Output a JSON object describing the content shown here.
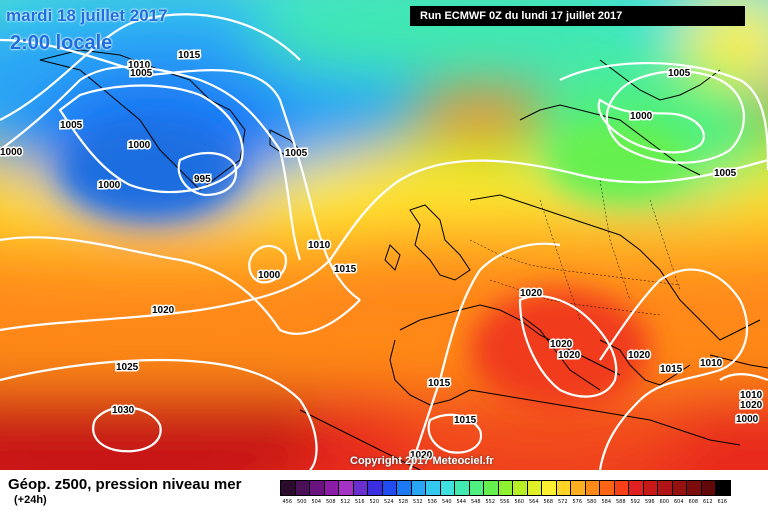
{
  "header": {
    "date": "mardi 18 juillet 2017",
    "time": "2:00 locale",
    "run": "Run ECMWF 0Z du lundi 17 juillet 2017"
  },
  "copyright": "Copyright 2017 Meteociel.fr",
  "legend": {
    "title": "Géop. z500, pression niveau mer",
    "subtitle": "(+24h)",
    "scale": [
      {
        "v": "456",
        "c": "#2b0a2e"
      },
      {
        "v": "500",
        "c": "#4b0f57"
      },
      {
        "v": "504",
        "c": "#6a1380"
      },
      {
        "v": "508",
        "c": "#8a1ca8"
      },
      {
        "v": "512",
        "c": "#a532c4"
      },
      {
        "v": "516",
        "c": "#6b2fd0"
      },
      {
        "v": "520",
        "c": "#3a2ee0"
      },
      {
        "v": "524",
        "c": "#1f4bf0"
      },
      {
        "v": "528",
        "c": "#1d78f5"
      },
      {
        "v": "532",
        "c": "#29a5f5"
      },
      {
        "v": "536",
        "c": "#33c8f0"
      },
      {
        "v": "540",
        "c": "#3fe0e0"
      },
      {
        "v": "544",
        "c": "#41e8b0"
      },
      {
        "v": "548",
        "c": "#4ef080"
      },
      {
        "v": "552",
        "c": "#66f050"
      },
      {
        "v": "556",
        "c": "#8ef030"
      },
      {
        "v": "560",
        "c": "#b8f028"
      },
      {
        "v": "564",
        "c": "#e0f028"
      },
      {
        "v": "568",
        "c": "#fff030"
      },
      {
        "v": "572",
        "c": "#ffd428"
      },
      {
        "v": "576",
        "c": "#ffb020"
      },
      {
        "v": "580",
        "c": "#ff8a18"
      },
      {
        "v": "584",
        "c": "#ff6414"
      },
      {
        "v": "588",
        "c": "#f84018"
      },
      {
        "v": "592",
        "c": "#e02020"
      },
      {
        "v": "596",
        "c": "#c81818"
      },
      {
        "v": "600",
        "c": "#b01414"
      },
      {
        "v": "604",
        "c": "#961010"
      },
      {
        "v": "608",
        "c": "#7c0c0c"
      },
      {
        "v": "612",
        "c": "#620808"
      },
      {
        "v": "616",
        "c": "#000000"
      }
    ]
  },
  "isobars": [
    "1015",
    "1010",
    "1005",
    "1005",
    "1000",
    "995",
    "1000",
    "1000",
    "1005",
    "1010",
    "1000",
    "1015",
    "1005",
    "1000",
    "1005",
    "1020",
    "1020",
    "1025",
    "1030",
    "1015",
    "1015",
    "1020",
    "1020",
    "1020",
    "1020",
    "1015",
    "1010",
    "1010",
    "1020",
    "1000"
  ]
}
